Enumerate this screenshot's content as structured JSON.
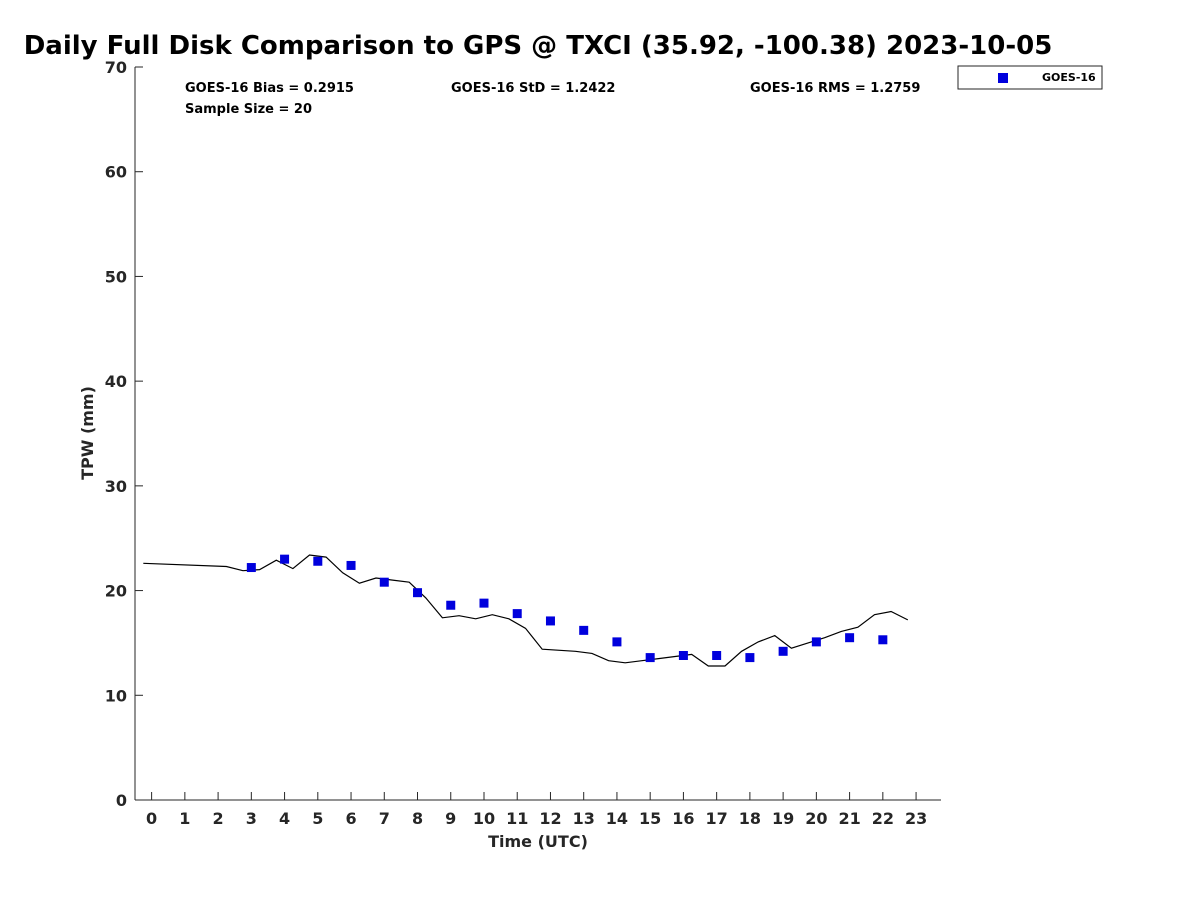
{
  "chart_data": {
    "type": "scatter",
    "title": "Daily Full Disk Comparison to GPS @ TXCI (35.92, -100.38) 2023-10-05",
    "xlabel": "Time (UTC)",
    "ylabel": "TPW (mm)",
    "xlim": [
      -0.5,
      23.75
    ],
    "ylim": [
      0,
      70
    ],
    "x_ticks": [
      0,
      1,
      2,
      3,
      4,
      5,
      6,
      7,
      8,
      9,
      10,
      11,
      12,
      13,
      14,
      15,
      16,
      17,
      18,
      19,
      20,
      21,
      22,
      23
    ],
    "y_ticks": [
      0,
      10,
      20,
      30,
      40,
      50,
      60,
      70
    ],
    "grid": false,
    "legend_position": "top-right",
    "stats": {
      "bias": "GOES-16 Bias = 0.2915",
      "std": "GOES-16 StD = 1.2422",
      "rms": "GOES-16 RMS = 1.2759",
      "sample_size": "Sample Size = 20"
    },
    "series": [
      {
        "name": "GOES-16",
        "kind": "scatter",
        "marker": "square",
        "color": "#0000dd",
        "x": [
          3,
          4,
          5,
          6,
          7,
          8,
          9,
          10,
          11,
          12,
          13,
          14,
          15,
          16,
          17,
          18,
          19,
          20,
          21,
          22
        ],
        "y": [
          22.2,
          23.0,
          22.8,
          22.4,
          20.8,
          19.8,
          18.6,
          18.8,
          17.8,
          17.1,
          16.2,
          15.1,
          13.6,
          13.8,
          13.8,
          13.6,
          14.2,
          15.1,
          15.5,
          15.3
        ]
      },
      {
        "kind": "line",
        "color": "#000000",
        "x": [
          -0.25,
          2.25,
          2.75,
          3.25,
          3.75,
          4.25,
          4.75,
          5.25,
          5.75,
          6.25,
          6.75,
          7.25,
          7.75,
          8.25,
          8.75,
          9.25,
          9.75,
          10.25,
          10.75,
          11.25,
          11.75,
          12.75,
          13.25,
          13.75,
          14.25,
          14.75,
          15.25,
          15.75,
          16.25,
          16.75,
          17.25,
          17.75,
          18.25,
          18.75,
          19.25,
          19.75,
          20.25,
          20.75,
          21.25,
          21.75,
          22.25,
          22.75
        ],
        "y": [
          22.6,
          22.3,
          21.9,
          22.0,
          22.9,
          22.1,
          23.4,
          23.2,
          21.7,
          20.7,
          21.2,
          21.0,
          20.8,
          19.3,
          17.4,
          17.6,
          17.3,
          17.7,
          17.3,
          16.4,
          14.4,
          14.2,
          14.0,
          13.3,
          13.1,
          13.3,
          13.5,
          13.7,
          13.9,
          12.8,
          12.8,
          14.2,
          15.1,
          15.7,
          14.5,
          15.0,
          15.5,
          16.1,
          16.5,
          17.7,
          18.0,
          17.2
        ]
      }
    ]
  }
}
